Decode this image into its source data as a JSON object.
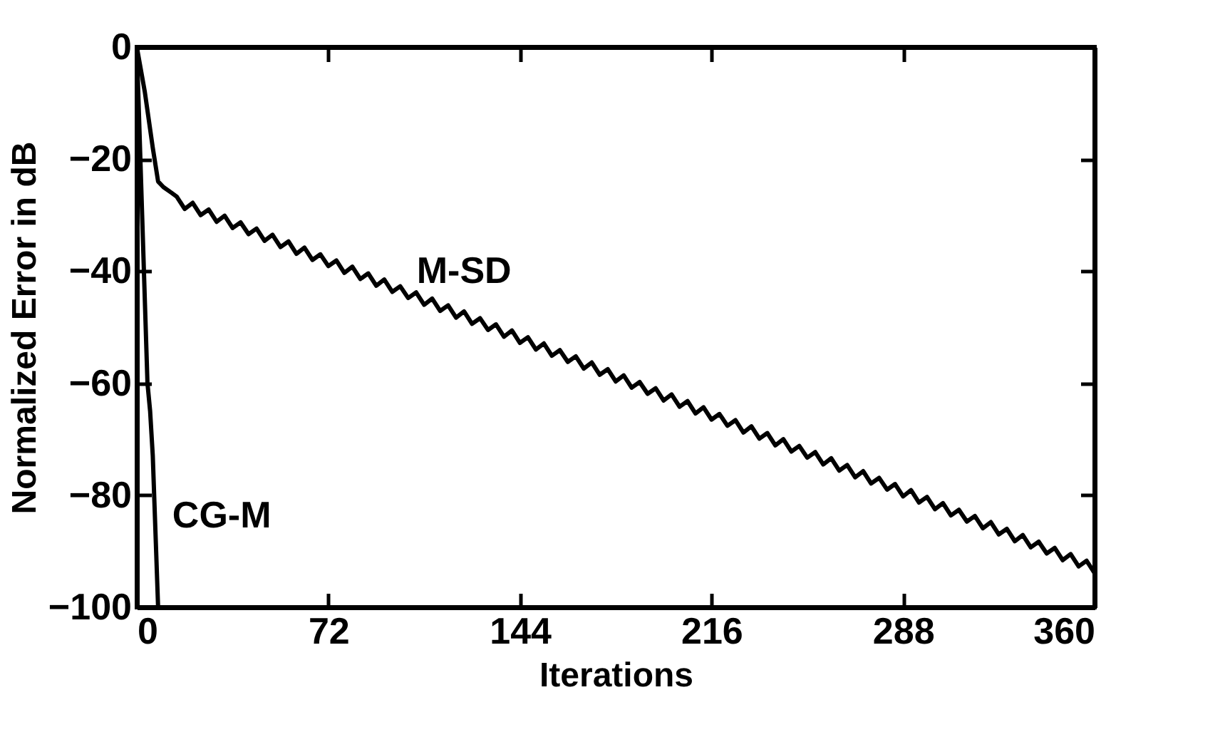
{
  "chart_data": {
    "type": "line",
    "xlabel": "Iterations",
    "ylabel": "Normalized Error in dB",
    "xlim": [
      0,
      360
    ],
    "xticks": [
      0,
      72,
      144,
      216,
      288,
      360
    ],
    "ylim": [
      -100,
      0
    ],
    "yticks": [
      -100,
      -80,
      -60,
      -40,
      -20,
      0
    ],
    "grid": false,
    "marker": "none",
    "line_style": "solid",
    "series": [
      {
        "name": "M-SD",
        "color": "#000000",
        "x": [
          0,
          3,
          6,
          8,
          10,
          13,
          15,
          18,
          21,
          24,
          27,
          30,
          33,
          36,
          39,
          42,
          45,
          48,
          51,
          54,
          57,
          60,
          63,
          66,
          69,
          72,
          75,
          78,
          81,
          84,
          87,
          90,
          93,
          96,
          99,
          102,
          105,
          108,
          111,
          114,
          117,
          120,
          123,
          126,
          129,
          132,
          135,
          138,
          141,
          144,
          147,
          150,
          153,
          156,
          159,
          162,
          165,
          168,
          171,
          174,
          177,
          180,
          183,
          186,
          189,
          192,
          195,
          198,
          201,
          204,
          207,
          210,
          213,
          216,
          219,
          222,
          225,
          228,
          231,
          234,
          237,
          240,
          243,
          246,
          249,
          252,
          255,
          258,
          261,
          264,
          267,
          270,
          273,
          276,
          279,
          282,
          285,
          288,
          291,
          294,
          297,
          300,
          303,
          306,
          309,
          312,
          315,
          318,
          321,
          324,
          327,
          330,
          333,
          336,
          339,
          342,
          345,
          348,
          351,
          354,
          357,
          360
        ],
        "values": [
          0,
          -8,
          -18,
          -24,
          -25,
          -26,
          -26.7,
          -28.9,
          -27.8,
          -30.0,
          -29.0,
          -31.2,
          -30.1,
          -32.3,
          -31.3,
          -33.4,
          -32.4,
          -34.6,
          -33.5,
          -35.7,
          -34.7,
          -36.9,
          -35.8,
          -38.0,
          -37.0,
          -39.1,
          -38.1,
          -40.3,
          -39.2,
          -41.4,
          -40.4,
          -42.6,
          -41.5,
          -43.7,
          -42.7,
          -44.8,
          -43.8,
          -46.0,
          -44.9,
          -47.1,
          -46.1,
          -48.3,
          -47.2,
          -49.4,
          -48.4,
          -50.5,
          -49.5,
          -51.7,
          -50.6,
          -52.8,
          -51.8,
          -54.0,
          -52.9,
          -55.1,
          -54.1,
          -56.2,
          -55.2,
          -57.4,
          -56.3,
          -58.5,
          -57.5,
          -59.7,
          -58.6,
          -60.8,
          -59.8,
          -61.9,
          -60.9,
          -63.1,
          -62.0,
          -64.2,
          -63.2,
          -65.4,
          -64.3,
          -66.5,
          -65.5,
          -67.6,
          -66.6,
          -68.8,
          -67.7,
          -69.9,
          -68.9,
          -71.1,
          -70.0,
          -72.2,
          -71.2,
          -73.3,
          -72.3,
          -74.5,
          -73.4,
          -75.6,
          -74.6,
          -76.8,
          -75.7,
          -77.9,
          -76.9,
          -79.0,
          -78.0,
          -80.2,
          -79.1,
          -81.3,
          -80.3,
          -82.5,
          -81.4,
          -83.6,
          -82.6,
          -84.7,
          -83.7,
          -85.9,
          -84.8,
          -87.0,
          -86.0,
          -88.2,
          -87.1,
          -89.3,
          -88.3,
          -90.4,
          -89.4,
          -91.6,
          -90.5,
          -92.7,
          -91.7,
          -93.9
        ]
      },
      {
        "name": "CG-M",
        "color": "#000000",
        "x": [
          0,
          2,
          4,
          5,
          6,
          8
        ],
        "values": [
          0,
          -30,
          -60,
          -65,
          -73,
          -100
        ]
      }
    ]
  }
}
